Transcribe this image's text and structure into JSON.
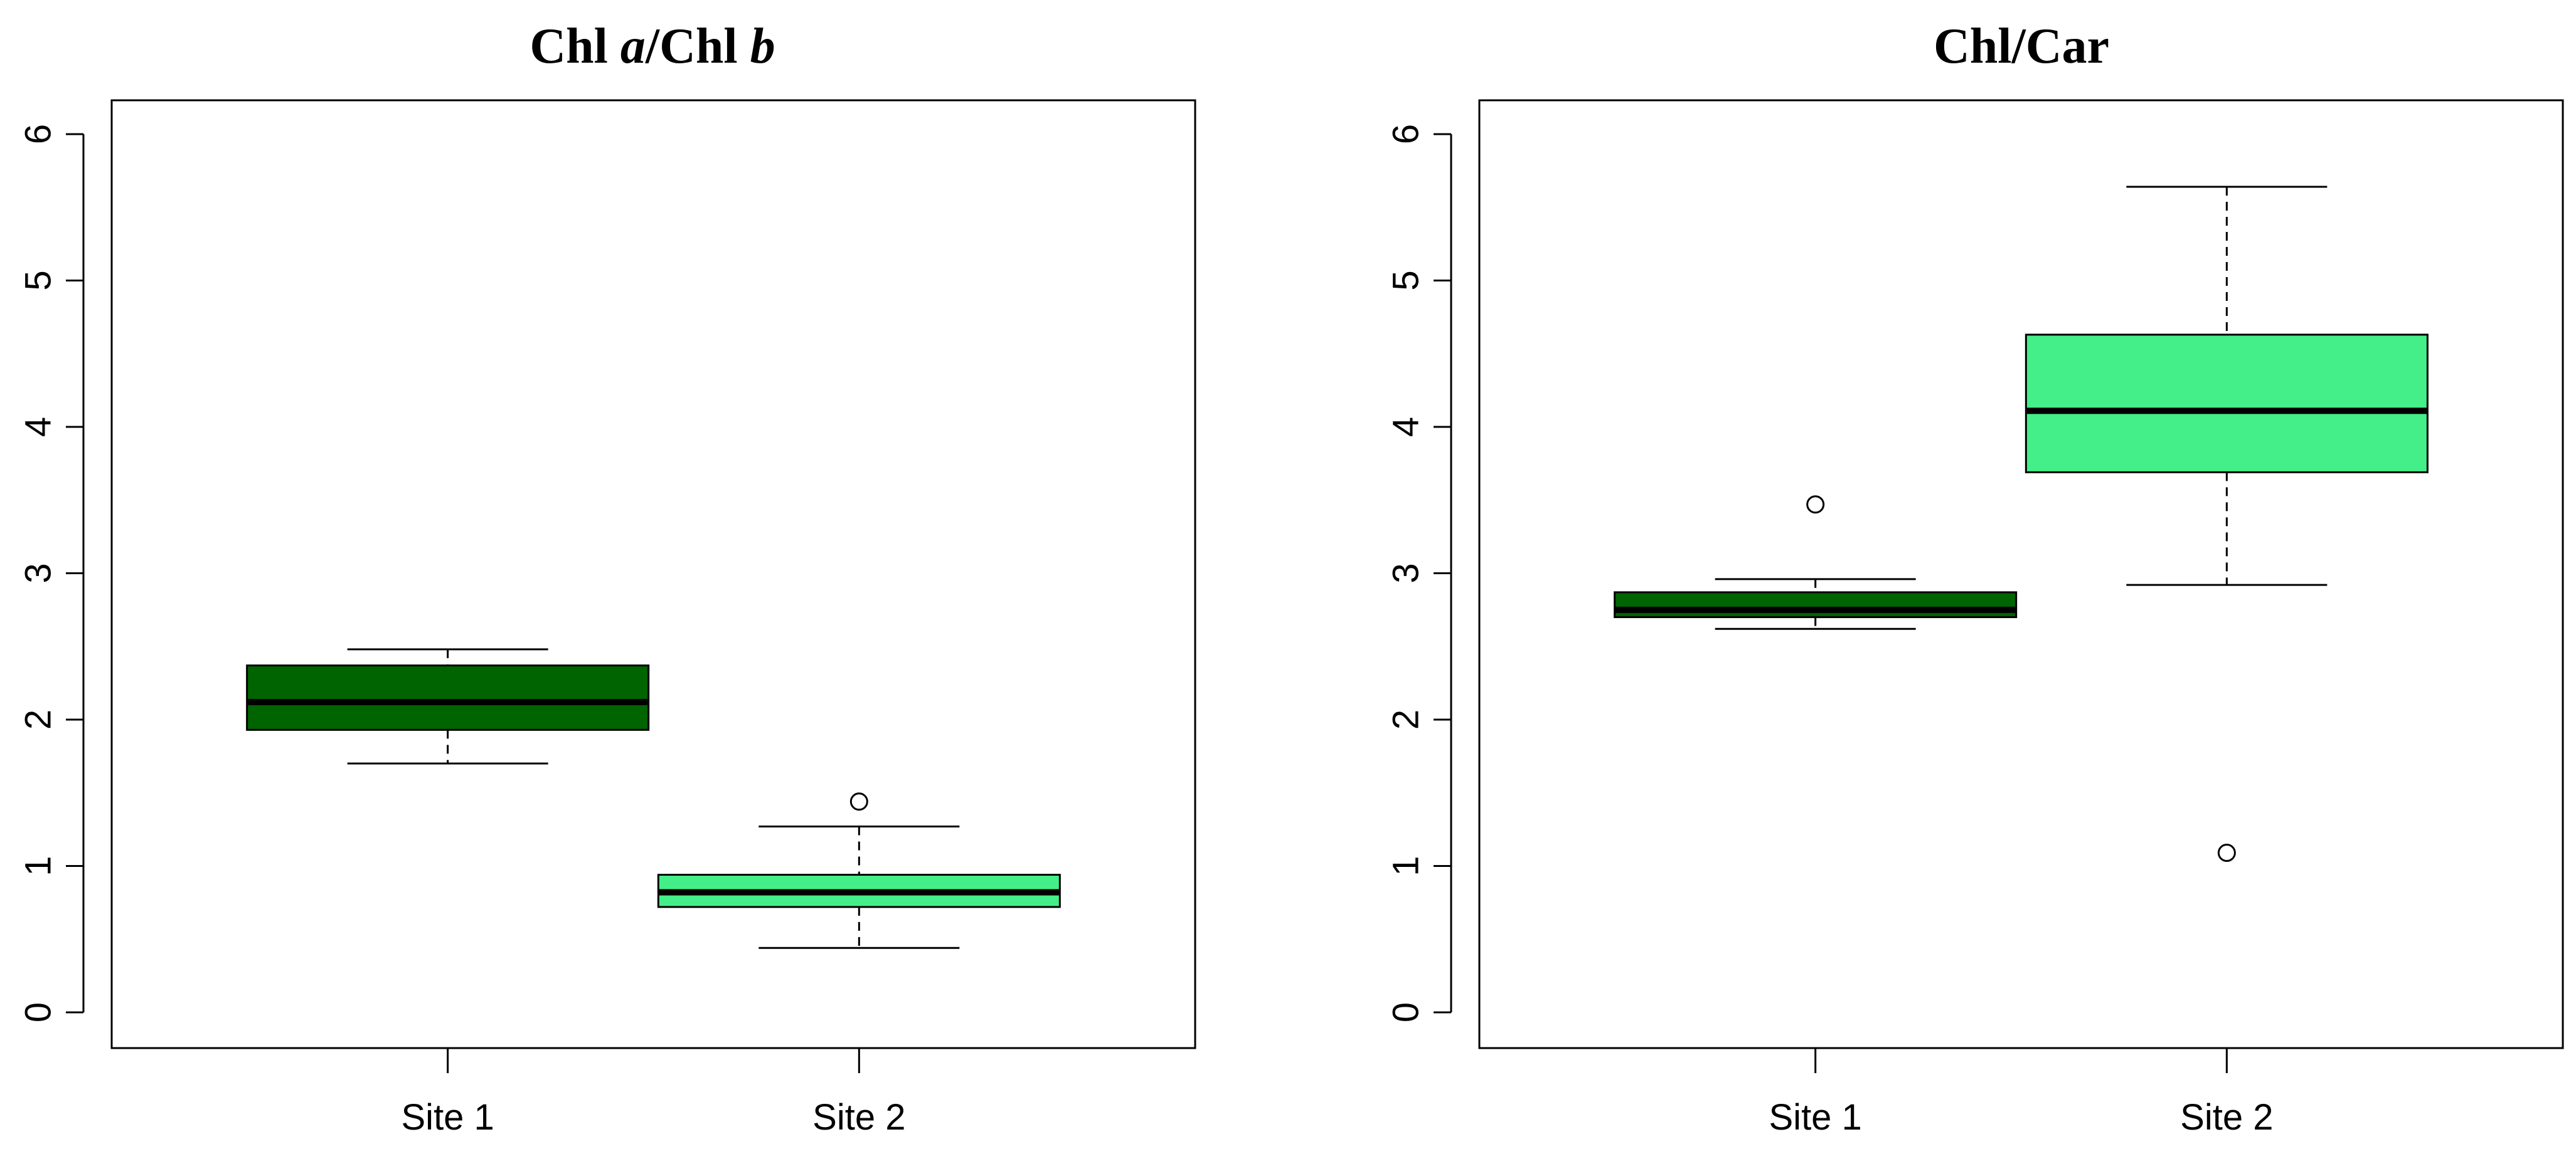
{
  "chart_data": [
    {
      "type": "box",
      "title": "Chl a/Chl b",
      "title_parts": [
        {
          "text": "Chl ",
          "italic": false
        },
        {
          "text": "a",
          "italic": true
        },
        {
          "text": "/Chl ",
          "italic": false
        },
        {
          "text": "b",
          "italic": true
        }
      ],
      "xlabel": "",
      "ylabel": "",
      "ylim": [
        0,
        6.2
      ],
      "yticks": [
        0,
        1,
        2,
        3,
        4,
        5,
        6
      ],
      "categories": [
        "Site 1",
        "Site 2"
      ],
      "boxes": [
        {
          "category": "Site 1",
          "whisker_low": 1.7,
          "q1": 1.93,
          "median": 2.12,
          "q3": 2.37,
          "whisker_high": 2.48,
          "outliers": [],
          "color": "#006400"
        },
        {
          "category": "Site 2",
          "whisker_low": 0.44,
          "q1": 0.72,
          "median": 0.82,
          "q3": 0.94,
          "whisker_high": 1.27,
          "outliers": [
            1.44
          ],
          "color": "#44EE88"
        }
      ]
    },
    {
      "type": "box",
      "title": "Chl/Car",
      "title_parts": [
        {
          "text": "Chl/Car",
          "italic": false
        }
      ],
      "xlabel": "",
      "ylabel": "",
      "ylim": [
        0,
        6.2
      ],
      "yticks": [
        0,
        1,
        2,
        3,
        4,
        5,
        6
      ],
      "categories": [
        "Site 1",
        "Site 2"
      ],
      "boxes": [
        {
          "category": "Site 1",
          "whisker_low": 2.62,
          "q1": 2.7,
          "median": 2.75,
          "q3": 2.87,
          "whisker_high": 2.96,
          "outliers": [
            3.47
          ],
          "color": "#006400"
        },
        {
          "category": "Site 2",
          "whisker_low": 2.92,
          "q1": 3.69,
          "median": 4.11,
          "q3": 4.63,
          "whisker_high": 5.64,
          "outliers": [
            1.09
          ],
          "color": "#44EE88"
        }
      ]
    }
  ]
}
